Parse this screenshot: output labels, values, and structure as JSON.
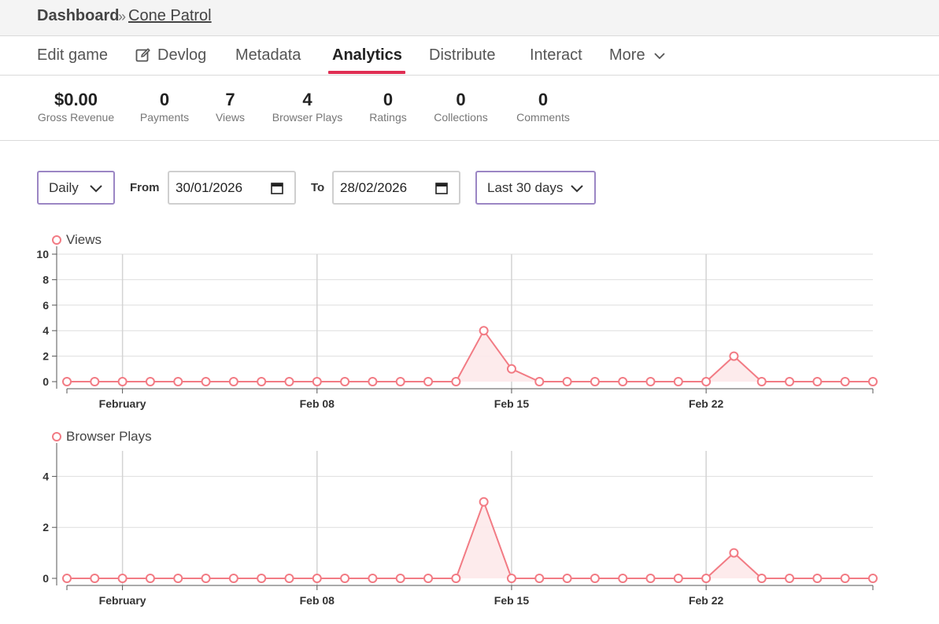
{
  "breadcrumb": {
    "root": "Dashboard",
    "separator": "»",
    "page": "Cone Patrol"
  },
  "tabs": [
    {
      "label": "Edit game"
    },
    {
      "label": "Devlog"
    },
    {
      "label": "Metadata"
    },
    {
      "label": "Analytics"
    },
    {
      "label": "Distribute"
    },
    {
      "label": "Interact"
    },
    {
      "label": "More"
    }
  ],
  "stats": [
    {
      "value": "$0.00",
      "label": "Gross Revenue"
    },
    {
      "value": "0",
      "label": "Payments"
    },
    {
      "value": "7",
      "label": "Views"
    },
    {
      "value": "4",
      "label": "Browser Plays"
    },
    {
      "value": "0",
      "label": "Ratings"
    },
    {
      "value": "0",
      "label": "Collections"
    },
    {
      "value": "0",
      "label": "Comments"
    }
  ],
  "filters": {
    "interval": "Daily",
    "from_label": "From",
    "from_value": "30/01/2026",
    "to_label": "To",
    "to_value": "28/02/2026",
    "range": "Last 30 days"
  },
  "colors": {
    "accent": "#e02e53",
    "series": "#f27b84",
    "series_fill": "#fde9ea",
    "select_border": "#9b86c4"
  },
  "chart_data": [
    {
      "type": "area",
      "title": "Views",
      "x": [
        "Jan 30",
        "Jan 31",
        "Feb 01",
        "Feb 02",
        "Feb 03",
        "Feb 04",
        "Feb 05",
        "Feb 06",
        "Feb 07",
        "Feb 08",
        "Feb 09",
        "Feb 10",
        "Feb 11",
        "Feb 12",
        "Feb 13",
        "Feb 14",
        "Feb 15",
        "Feb 16",
        "Feb 17",
        "Feb 18",
        "Feb 19",
        "Feb 20",
        "Feb 21",
        "Feb 22",
        "Feb 23",
        "Feb 24",
        "Feb 25",
        "Feb 26",
        "Feb 27",
        "Feb 28"
      ],
      "values": [
        0,
        0,
        0,
        0,
        0,
        0,
        0,
        0,
        0,
        0,
        0,
        0,
        0,
        0,
        0,
        4,
        1,
        0,
        0,
        0,
        0,
        0,
        0,
        0,
        2,
        0,
        0,
        0,
        0,
        0
      ],
      "x_ticks": [
        {
          "label": "February",
          "index": 2
        },
        {
          "label": "Feb 08",
          "index": 9
        },
        {
          "label": "Feb 15",
          "index": 16
        },
        {
          "label": "Feb 22",
          "index": 23
        }
      ],
      "y_ticks": [
        0,
        2,
        4,
        6,
        8,
        10
      ],
      "ylim": [
        0,
        10
      ],
      "grid": true
    },
    {
      "type": "area",
      "title": "Browser Plays",
      "x": [
        "Jan 30",
        "Jan 31",
        "Feb 01",
        "Feb 02",
        "Feb 03",
        "Feb 04",
        "Feb 05",
        "Feb 06",
        "Feb 07",
        "Feb 08",
        "Feb 09",
        "Feb 10",
        "Feb 11",
        "Feb 12",
        "Feb 13",
        "Feb 14",
        "Feb 15",
        "Feb 16",
        "Feb 17",
        "Feb 18",
        "Feb 19",
        "Feb 20",
        "Feb 21",
        "Feb 22",
        "Feb 23",
        "Feb 24",
        "Feb 25",
        "Feb 26",
        "Feb 27",
        "Feb 28"
      ],
      "values": [
        0,
        0,
        0,
        0,
        0,
        0,
        0,
        0,
        0,
        0,
        0,
        0,
        0,
        0,
        0,
        3,
        0,
        0,
        0,
        0,
        0,
        0,
        0,
        0,
        1,
        0,
        0,
        0,
        0,
        0
      ],
      "x_ticks": [
        {
          "label": "February",
          "index": 2
        },
        {
          "label": "Feb 08",
          "index": 9
        },
        {
          "label": "Feb 15",
          "index": 16
        },
        {
          "label": "Feb 22",
          "index": 23
        }
      ],
      "y_ticks": [
        0,
        2,
        4
      ],
      "ylim": [
        0,
        5
      ],
      "grid": true
    }
  ]
}
